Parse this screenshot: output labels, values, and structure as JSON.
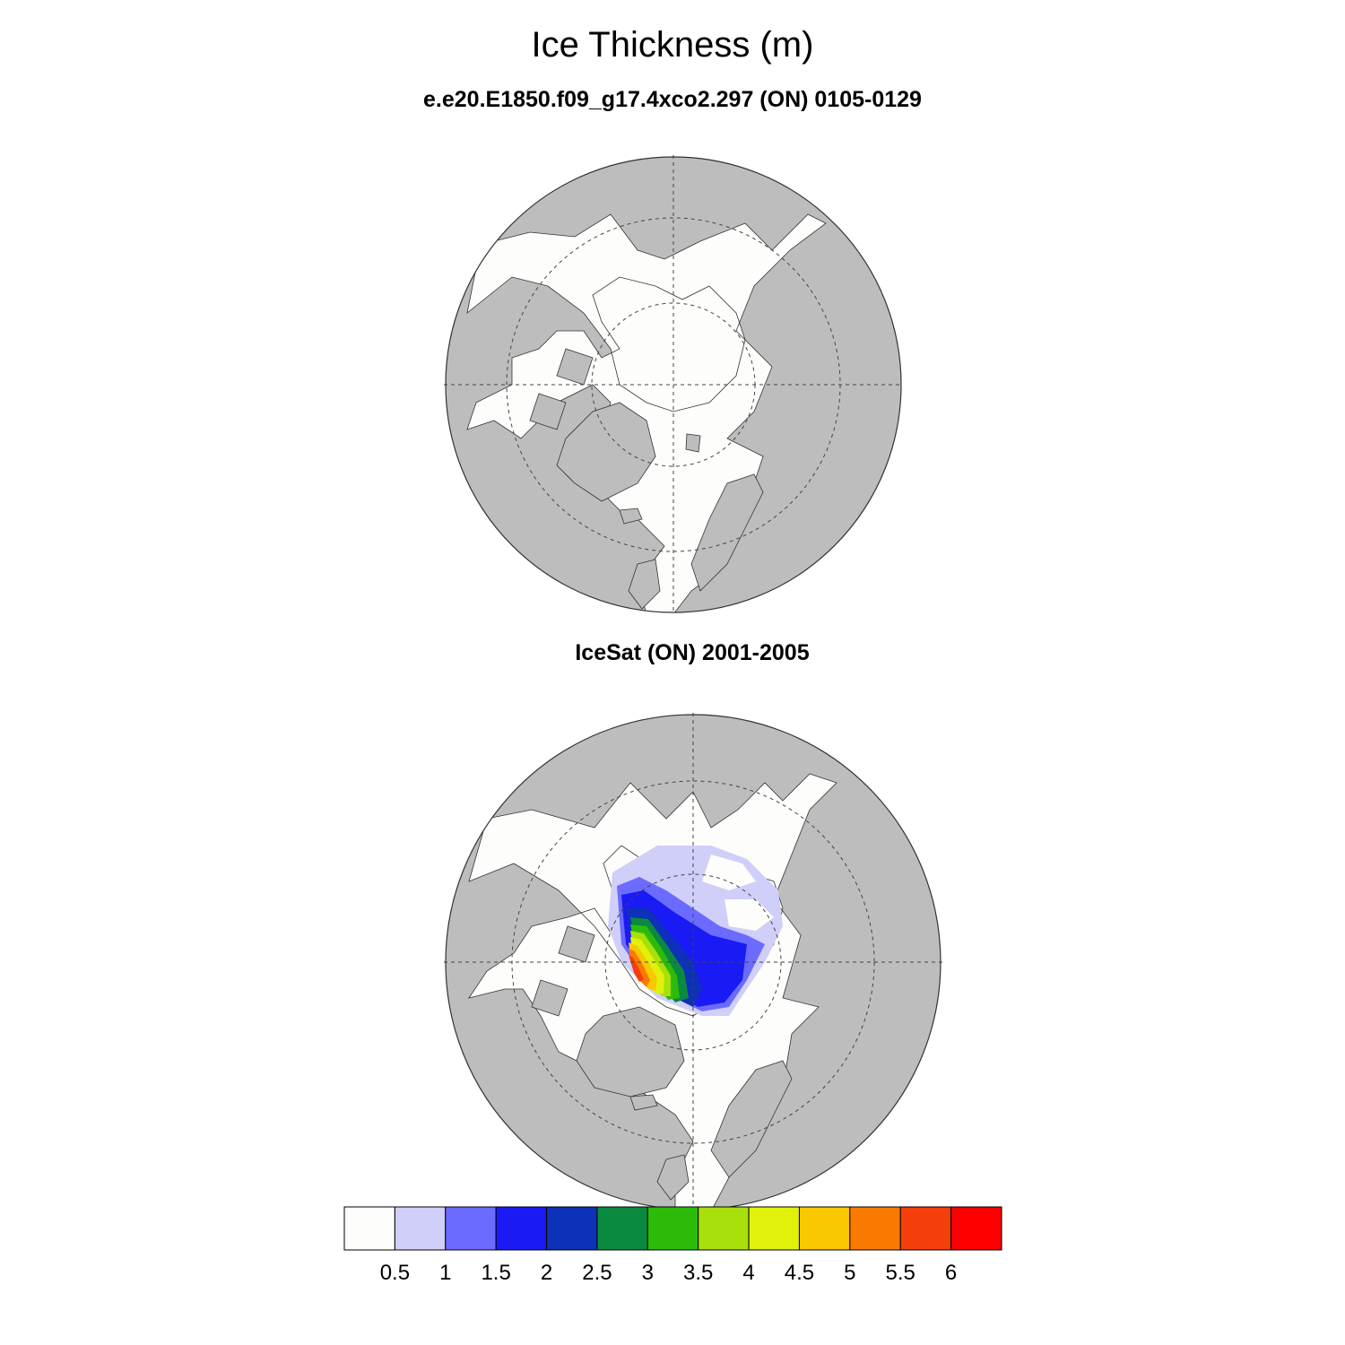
{
  "title": "Ice Thickness (m)",
  "panels": [
    {
      "id": "model",
      "subtitle": "e.e20.E1850.f09_g17.4xco2.297 (ON) 0105-0129"
    },
    {
      "id": "obs",
      "subtitle": "IceSat (ON) 2001-2005"
    }
  ],
  "colors": {
    "land": "#bdbdbd",
    "ocean": "#fdfdfb",
    "grid": "#444444"
  },
  "colorbar": {
    "labels": [
      "0.5",
      "1",
      "1.5",
      "2",
      "2.5",
      "3",
      "3.5",
      "4",
      "4.5",
      "5",
      "5.5",
      "6"
    ],
    "colors": [
      "#fdfdfb",
      "#cfcff9",
      "#6b6bff",
      "#1a1af5",
      "#0d31b8",
      "#0a8a40",
      "#2dbb0a",
      "#a7e00a",
      "#e1f10a",
      "#fac800",
      "#fa7a00",
      "#f53f0a",
      "#ff0000"
    ]
  }
}
